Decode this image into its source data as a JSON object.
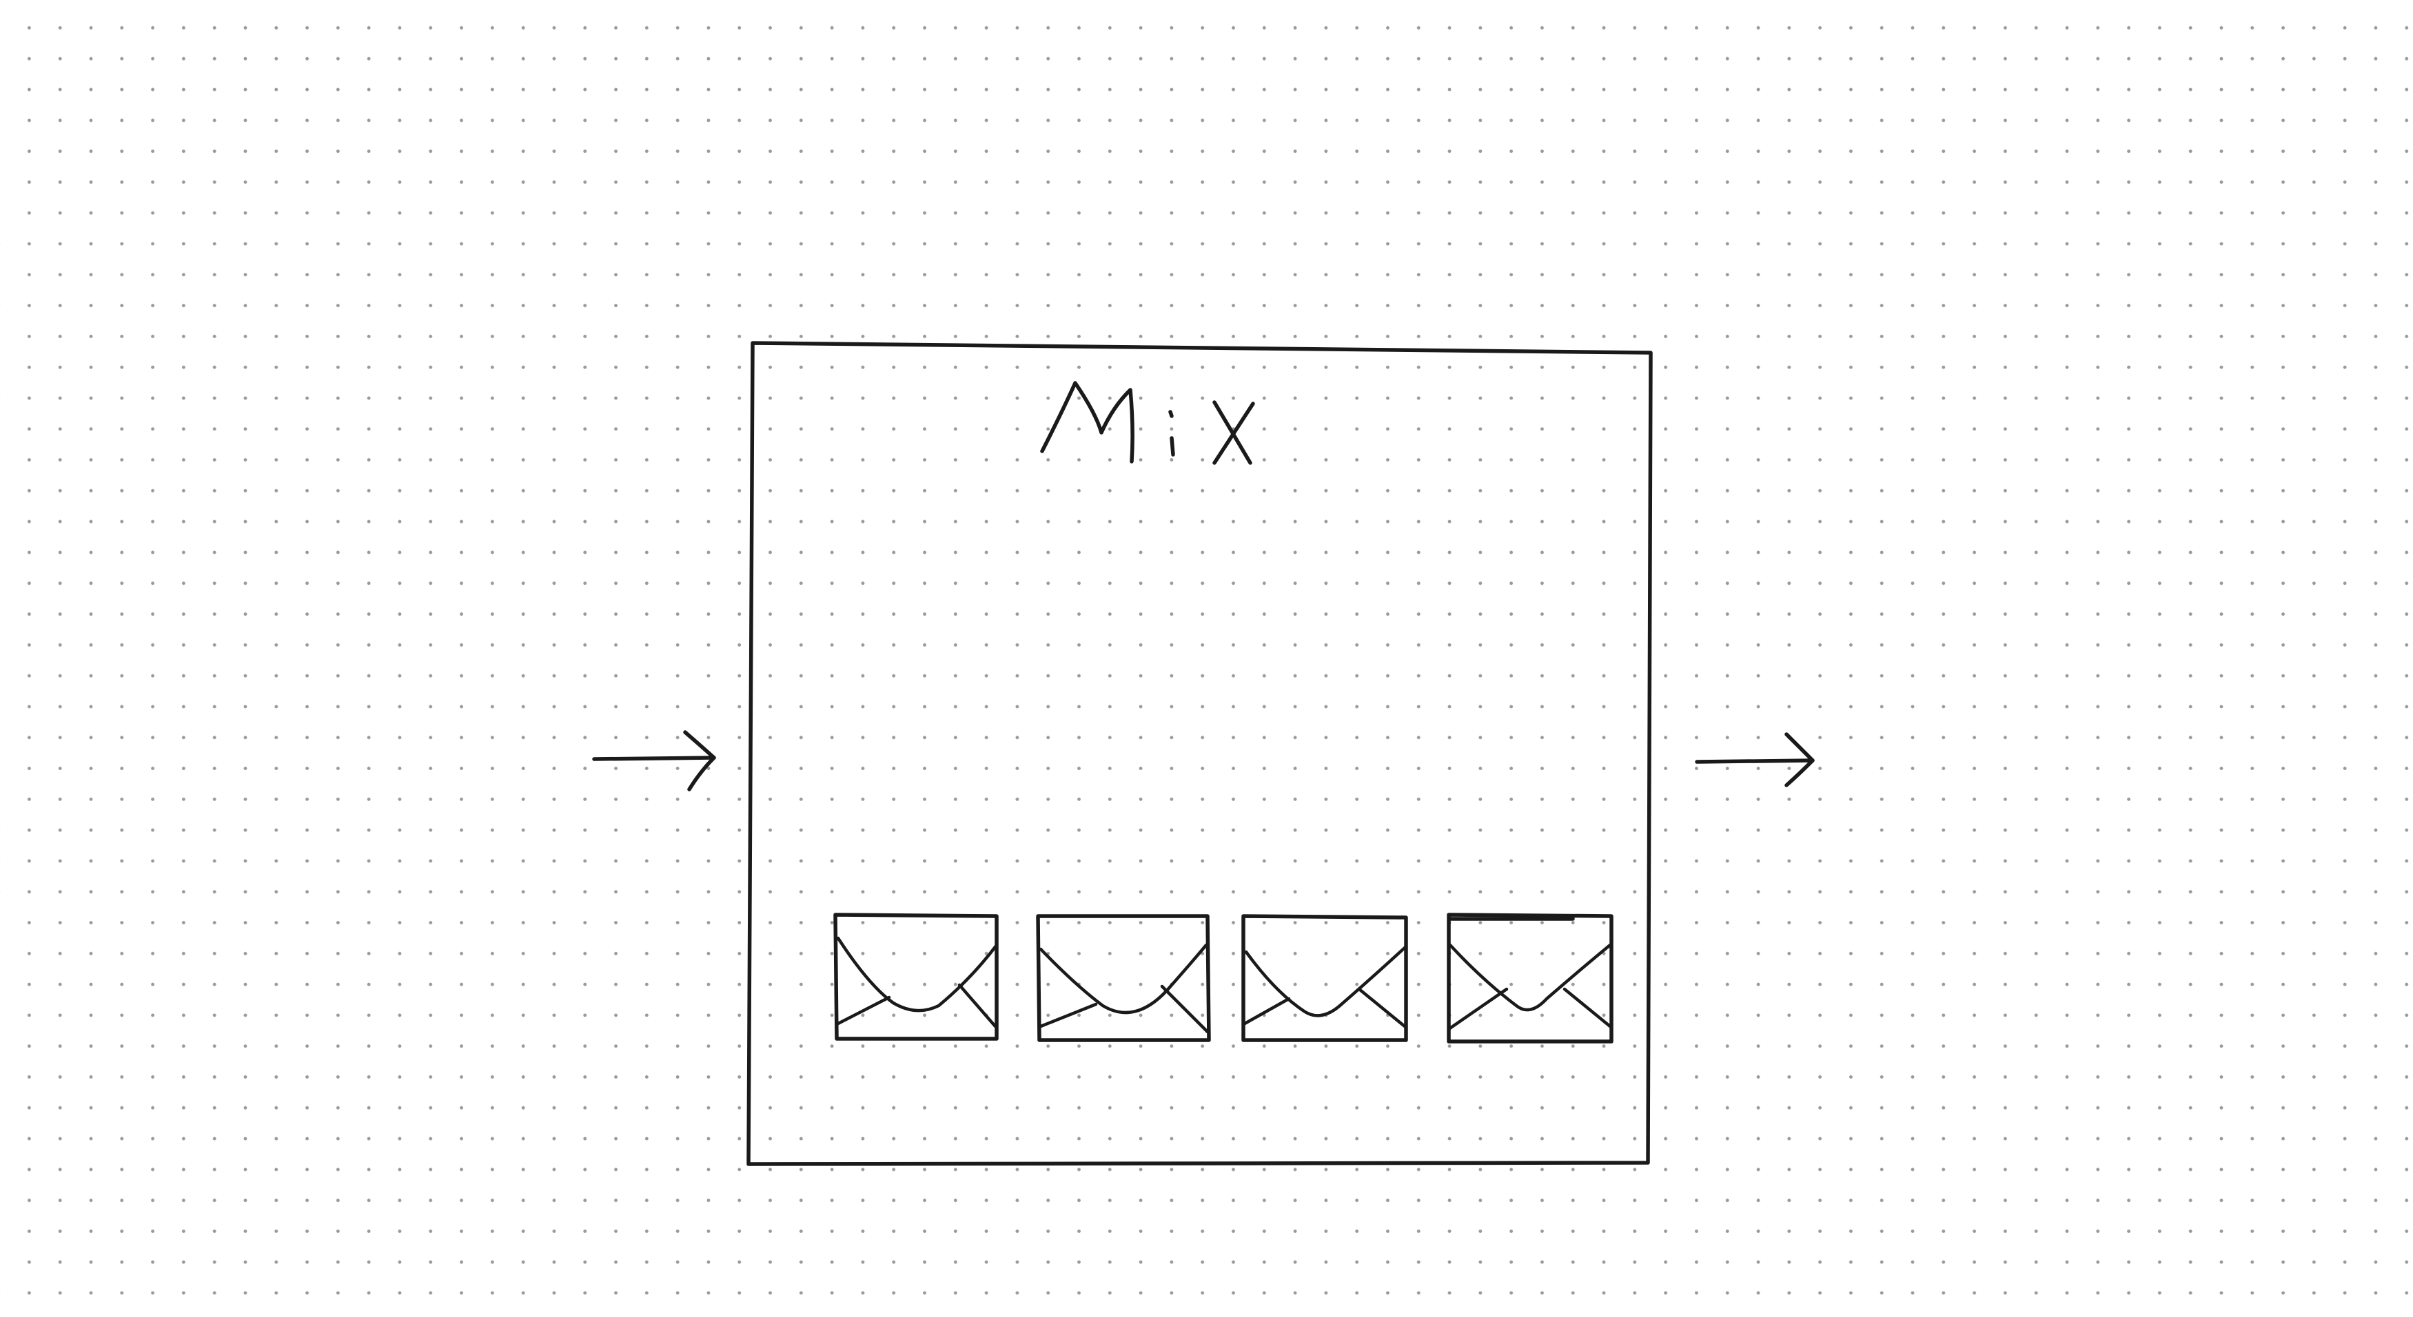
{
  "diagram": {
    "box_label": "Mix",
    "message_count": 4,
    "icons": {
      "input_arrow": "right-arrow-icon",
      "output_arrow": "right-arrow-icon",
      "message": "envelope-icon"
    },
    "colors": {
      "paper": "#ffffff",
      "ink": "#1a1a1a",
      "grid_dots": "#9a9a9a"
    }
  }
}
